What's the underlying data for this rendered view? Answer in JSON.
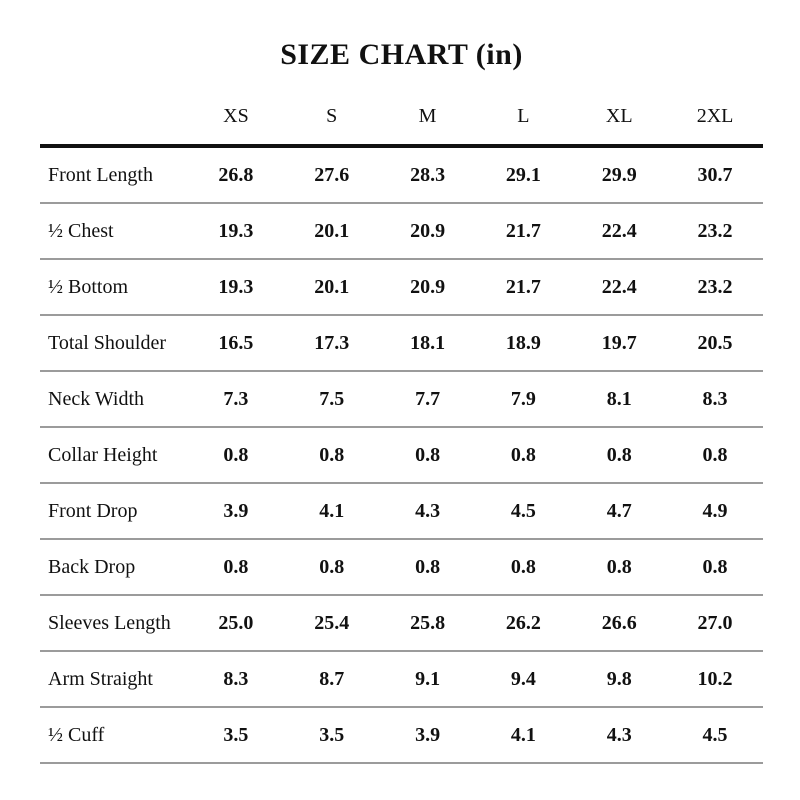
{
  "title": "SIZE CHART (in)",
  "colors": {
    "background": "#ffffff",
    "text": "#111111",
    "top_border": "#111111",
    "divider": "#9b9b9b"
  },
  "chart_data": {
    "type": "table",
    "title": "SIZE CHART (in)",
    "unit": "inches",
    "columns": [
      "XS",
      "S",
      "M",
      "L",
      "XL",
      "2XL"
    ],
    "rows": [
      {
        "label": "Front Length",
        "values": [
          "26.8",
          "27.6",
          "28.3",
          "29.1",
          "29.9",
          "30.7"
        ]
      },
      {
        "label": "½ Chest",
        "values": [
          "19.3",
          "20.1",
          "20.9",
          "21.7",
          "22.4",
          "23.2"
        ]
      },
      {
        "label": "½ Bottom",
        "values": [
          "19.3",
          "20.1",
          "20.9",
          "21.7",
          "22.4",
          "23.2"
        ]
      },
      {
        "label": "Total Shoulder",
        "values": [
          "16.5",
          "17.3",
          "18.1",
          "18.9",
          "19.7",
          "20.5"
        ]
      },
      {
        "label": "Neck Width",
        "values": [
          "7.3",
          "7.5",
          "7.7",
          "7.9",
          "8.1",
          "8.3"
        ]
      },
      {
        "label": "Collar Height",
        "values": [
          "0.8",
          "0.8",
          "0.8",
          "0.8",
          "0.8",
          "0.8"
        ]
      },
      {
        "label": "Front Drop",
        "values": [
          "3.9",
          "4.1",
          "4.3",
          "4.5",
          "4.7",
          "4.9"
        ]
      },
      {
        "label": "Back Drop",
        "values": [
          "0.8",
          "0.8",
          "0.8",
          "0.8",
          "0.8",
          "0.8"
        ]
      },
      {
        "label": "Sleeves Length",
        "values": [
          "25.0",
          "25.4",
          "25.8",
          "26.2",
          "26.6",
          "27.0"
        ]
      },
      {
        "label": "Arm Straight",
        "values": [
          "8.3",
          "8.7",
          "9.1",
          "9.4",
          "9.8",
          "10.2"
        ]
      },
      {
        "label": "½ Cuff",
        "values": [
          "3.5",
          "3.5",
          "3.9",
          "4.1",
          "4.3",
          "4.5"
        ]
      }
    ]
  }
}
